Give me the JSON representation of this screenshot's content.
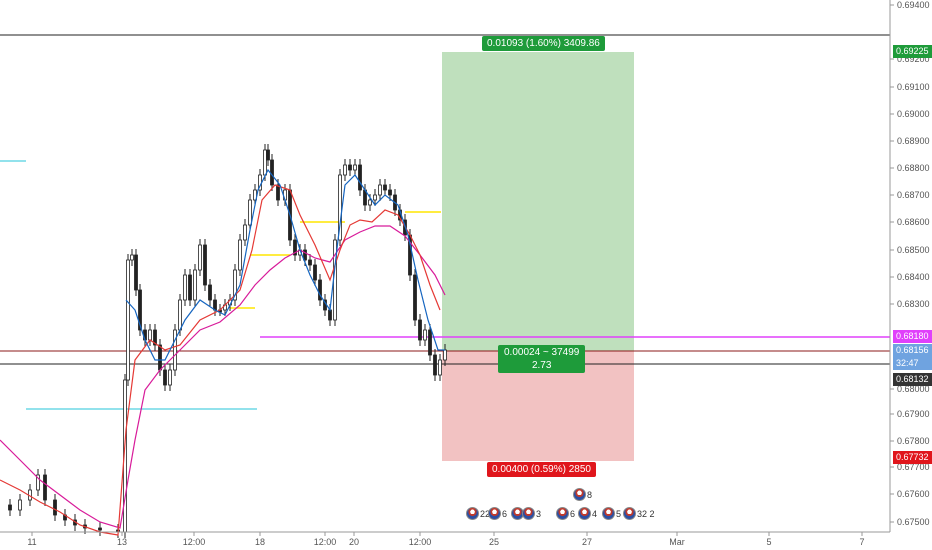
{
  "price_axis": {
    "labels": [
      "0.69400",
      "0.69200",
      "0.69100",
      "0.69000",
      "0.68900",
      "0.68800",
      "0.68700",
      "0.68600",
      "0.68500",
      "0.68400",
      "0.68300",
      "0.68000",
      "0.67900",
      "0.67800",
      "0.67700",
      "0.67600",
      "0.67500"
    ],
    "target_tag": "0.69225",
    "entry_tag": "0.68180",
    "current_price": "0.68156",
    "countdown": "32:47",
    "stop_tag": "0.68132",
    "stop_loss_tag": "0.67732"
  },
  "time_axis": {
    "labels": [
      "11",
      "13",
      "12:00",
      "18",
      "12:00",
      "20",
      "12:00",
      "25",
      "27",
      "Mar",
      "5",
      "7"
    ]
  },
  "position": {
    "target_label": "0.01093 (1.60%) 3409.86",
    "center_label_line1": "0.00024 ~ 37499",
    "center_label_line2": "2.73",
    "stop_label": "0.00400 (0.59%) 2850"
  },
  "events": [
    {
      "icon": "us-flag-icon",
      "count": "22",
      "extra": "6"
    },
    {
      "icon": "us-flag-icon",
      "count": "3",
      "extra": ""
    },
    {
      "icon": "us-flag-icon",
      "count": "8",
      "extra": ""
    },
    {
      "icon": "us-flag-icon",
      "count": "6",
      "extra": "4"
    },
    {
      "icon": "us-flag-icon",
      "count": "5",
      "extra": "32 2"
    }
  ],
  "colors": {
    "profit_zone": "#bfe0bd",
    "loss_zone": "#f2c2c2",
    "profit_tag": "#1e9b3a",
    "loss_tag": "#e0161c",
    "entry_line": "#e040fb",
    "blue_ma": "#1565c0",
    "red_ma": "#e53935",
    "magenta_ma": "#d81b9a",
    "cyan_level": "#26c6da",
    "yellow_level": "#ffeb3b",
    "price_tag_blue": "#6fa3e0",
    "price_tag_dark": "#333333"
  }
}
